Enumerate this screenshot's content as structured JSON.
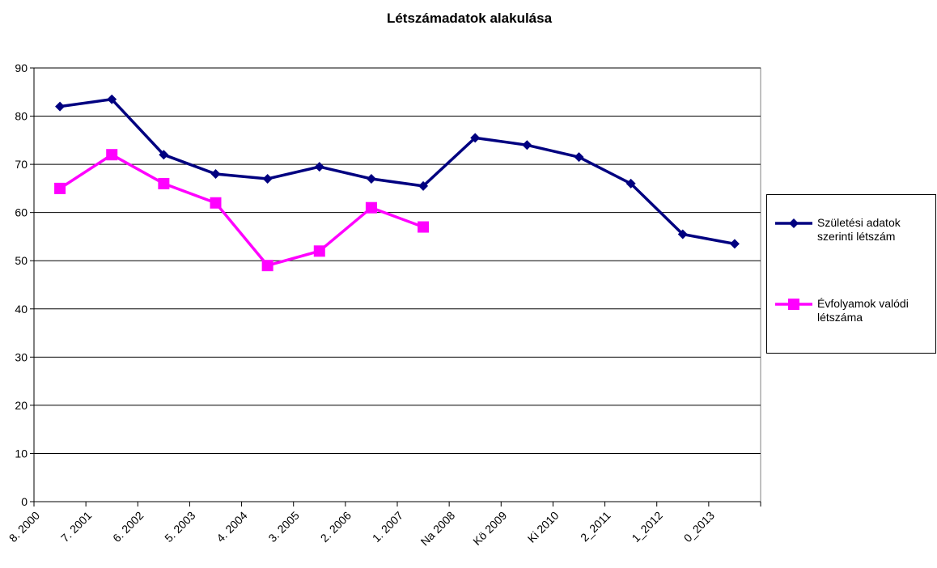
{
  "chart_data": {
    "type": "line",
    "title": "Létszámadatok alakulása",
    "categories": [
      "8. 2000",
      "7. 2001",
      "6. 2002",
      "5. 2003",
      "4. 2004",
      "3. 2005",
      "2. 2006",
      "1. 2007",
      "Na 2008",
      "Kö 2009",
      "Ki 2010",
      "2_2011",
      "1_2012",
      "0_2013"
    ],
    "series": [
      {
        "name": "Születési adatok szerinti létszám",
        "color": "#000080",
        "marker": "diamond",
        "values": [
          82,
          83.5,
          72,
          68,
          67,
          69.5,
          67,
          65.5,
          75.5,
          74,
          71.5,
          66,
          55.5,
          53.5
        ]
      },
      {
        "name": "Évfolyamok valódi létszáma",
        "color": "#ff00ff",
        "marker": "square",
        "values": [
          65,
          72,
          66,
          62,
          49,
          52,
          61,
          57,
          null,
          null,
          null,
          null,
          null,
          null
        ]
      }
    ],
    "ylim": [
      0,
      90
    ],
    "yticks": [
      0,
      10,
      20,
      30,
      40,
      50,
      60,
      70,
      80,
      90
    ],
    "grid": true,
    "legend": "right"
  }
}
